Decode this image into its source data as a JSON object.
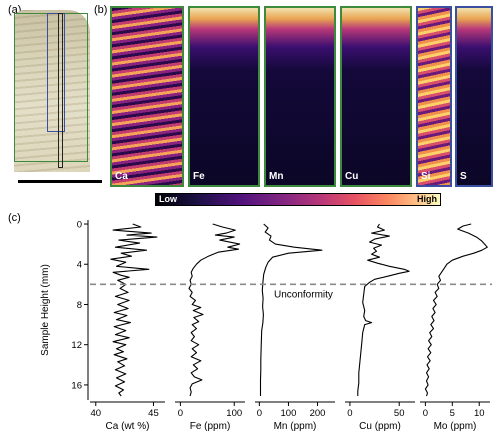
{
  "panels": {
    "a_label": "(a)",
    "b_label": "(b)",
    "c_label": "(c)"
  },
  "maps": [
    {
      "label": "Ca",
      "frame": "green",
      "pattern": "ca"
    },
    {
      "label": "Fe",
      "frame": "green",
      "pattern": "dark"
    },
    {
      "label": "Mn",
      "frame": "green",
      "pattern": "dark"
    },
    {
      "label": "Cu",
      "frame": "green",
      "pattern": "dark"
    },
    {
      "label": "Si",
      "frame": "blue",
      "pattern": "si"
    },
    {
      "label": "S",
      "frame": "blue",
      "pattern": "dark"
    }
  ],
  "colorbar": {
    "low": "Low",
    "high": "High"
  },
  "colors": {
    "frame_green": "#3d8a3d",
    "frame_blue": "#3a4fa0",
    "line": "#000000",
    "unconformity": "#8a8a8a"
  },
  "chart_data": {
    "type": "line",
    "ylabel": "Sample Height (mm)",
    "ylim": [
      17.5,
      -0.4
    ],
    "yticks": [
      0,
      4,
      8,
      12,
      16
    ],
    "unconformity": {
      "height": 6.0,
      "label": "Unconformity"
    },
    "series": [
      {
        "name": "Ca",
        "xlabel": "Ca (wt %)",
        "xlim": [
          39.5,
          46
        ],
        "xticks": [
          40,
          45
        ],
        "points": [
          [
            43.2,
            0
          ],
          [
            43.9,
            0.3
          ],
          [
            41.5,
            0.6
          ],
          [
            44.8,
            0.9
          ],
          [
            42.7,
            1.1
          ],
          [
            45.3,
            1.3
          ],
          [
            42.0,
            1.6
          ],
          [
            43.8,
            1.9
          ],
          [
            41.7,
            2.3
          ],
          [
            44.4,
            2.6
          ],
          [
            42.2,
            2.9
          ],
          [
            43.1,
            3.2
          ],
          [
            41.3,
            3.5
          ],
          [
            42.6,
            3.8
          ],
          [
            41.8,
            4.2
          ],
          [
            44.6,
            4.5
          ],
          [
            41.5,
            4.8
          ],
          [
            42.2,
            5.1
          ],
          [
            42.9,
            5.3
          ],
          [
            41.9,
            5.6
          ],
          [
            42.6,
            6.0
          ],
          [
            42.1,
            6.4
          ],
          [
            42.8,
            6.8
          ],
          [
            41.7,
            7.2
          ],
          [
            42.9,
            7.6
          ],
          [
            41.9,
            8.0
          ],
          [
            42.8,
            8.4
          ],
          [
            41.6,
            8.8
          ],
          [
            42.7,
            9.1
          ],
          [
            41.8,
            9.5
          ],
          [
            43.0,
            9.8
          ],
          [
            41.6,
            10.2
          ],
          [
            42.6,
            10.6
          ],
          [
            41.7,
            11.0
          ],
          [
            42.9,
            11.3
          ],
          [
            41.5,
            11.7
          ],
          [
            42.6,
            12.0
          ],
          [
            41.8,
            12.4
          ],
          [
            42.4,
            12.7
          ],
          [
            41.6,
            13.0
          ],
          [
            42.7,
            13.4
          ],
          [
            41.9,
            13.7
          ],
          [
            42.5,
            14.1
          ],
          [
            41.7,
            14.5
          ],
          [
            42.6,
            14.9
          ],
          [
            41.8,
            15.3
          ],
          [
            42.5,
            15.7
          ],
          [
            41.7,
            16.1
          ],
          [
            42.4,
            16.5
          ],
          [
            42.0,
            16.8
          ],
          [
            42.2,
            17.1
          ]
        ]
      },
      {
        "name": "Fe",
        "xlabel": "Fe (ppm)",
        "xlim": [
          -10,
          120
        ],
        "xticks": [
          0,
          100
        ],
        "points": [
          [
            60,
            0
          ],
          [
            78,
            0.3
          ],
          [
            102,
            0.6
          ],
          [
            85,
            0.9
          ],
          [
            65,
            1.1
          ],
          [
            100,
            1.3
          ],
          [
            73,
            1.6
          ],
          [
            110,
            2.0
          ],
          [
            88,
            2.3
          ],
          [
            108,
            2.5
          ],
          [
            70,
            2.8
          ],
          [
            52,
            3.2
          ],
          [
            38,
            3.6
          ],
          [
            30,
            4.0
          ],
          [
            24,
            4.4
          ],
          [
            20,
            4.8
          ],
          [
            22,
            5.2
          ],
          [
            18,
            5.6
          ],
          [
            20,
            6.0
          ],
          [
            16,
            6.4
          ],
          [
            22,
            6.8
          ],
          [
            18,
            7.2
          ],
          [
            28,
            7.6
          ],
          [
            22,
            8.0
          ],
          [
            38,
            8.3
          ],
          [
            24,
            8.6
          ],
          [
            42,
            9.0
          ],
          [
            25,
            9.3
          ],
          [
            34,
            9.7
          ],
          [
            22,
            10.0
          ],
          [
            30,
            10.4
          ],
          [
            20,
            10.8
          ],
          [
            26,
            11.2
          ],
          [
            20,
            11.6
          ],
          [
            34,
            12.0
          ],
          [
            22,
            12.4
          ],
          [
            30,
            12.8
          ],
          [
            20,
            13.2
          ],
          [
            38,
            13.6
          ],
          [
            24,
            14.0
          ],
          [
            32,
            14.4
          ],
          [
            20,
            14.8
          ],
          [
            26,
            15.2
          ],
          [
            40,
            15.5
          ],
          [
            22,
            15.9
          ],
          [
            18,
            16.3
          ],
          [
            20,
            16.7
          ],
          [
            18,
            17.1
          ]
        ]
      },
      {
        "name": "Mn",
        "xlabel": "Mn (ppm)",
        "xlim": [
          -15,
          260
        ],
        "xticks": [
          0,
          100,
          200
        ],
        "points": [
          [
            15,
            0
          ],
          [
            30,
            0.4
          ],
          [
            20,
            0.8
          ],
          [
            40,
            1.2
          ],
          [
            35,
            1.6
          ],
          [
            55,
            2.0
          ],
          [
            120,
            2.3
          ],
          [
            215,
            2.6
          ],
          [
            100,
            2.9
          ],
          [
            45,
            3.3
          ],
          [
            30,
            3.8
          ],
          [
            22,
            4.3
          ],
          [
            15,
            5.0
          ],
          [
            12,
            5.8
          ],
          [
            10,
            6.6
          ],
          [
            13,
            7.4
          ],
          [
            11,
            8.2
          ],
          [
            14,
            9.0
          ],
          [
            12,
            9.8
          ],
          [
            8,
            10.6
          ],
          [
            7,
            11.5
          ],
          [
            6,
            12.5
          ],
          [
            5,
            13.5
          ],
          [
            5,
            14.5
          ],
          [
            4,
            15.5
          ],
          [
            4,
            16.5
          ],
          [
            4,
            17.1
          ]
        ]
      },
      {
        "name": "Cu",
        "xlabel": "Cu (ppm)",
        "xlim": [
          -5,
          66
        ],
        "xticks": [
          0,
          50
        ],
        "points": [
          [
            30,
            0
          ],
          [
            28,
            0.3
          ],
          [
            35,
            0.6
          ],
          [
            22,
            0.9
          ],
          [
            40,
            1.2
          ],
          [
            25,
            1.5
          ],
          [
            20,
            1.8
          ],
          [
            32,
            2.1
          ],
          [
            24,
            2.4
          ],
          [
            27,
            2.7
          ],
          [
            22,
            3.0
          ],
          [
            30,
            3.3
          ],
          [
            18,
            3.6
          ],
          [
            28,
            3.9
          ],
          [
            40,
            4.2
          ],
          [
            55,
            4.5
          ],
          [
            60,
            4.7
          ],
          [
            50,
            4.9
          ],
          [
            38,
            5.2
          ],
          [
            25,
            5.5
          ],
          [
            20,
            5.8
          ],
          [
            15,
            6.2
          ],
          [
            14,
            7.0
          ],
          [
            13,
            7.8
          ],
          [
            15,
            8.6
          ],
          [
            14,
            9.2
          ],
          [
            16,
            9.6
          ],
          [
            22,
            9.8
          ],
          [
            15,
            10.0
          ],
          [
            13,
            10.8
          ],
          [
            12,
            11.8
          ],
          [
            11,
            12.8
          ],
          [
            10,
            13.8
          ],
          [
            9,
            14.8
          ],
          [
            9,
            15.8
          ],
          [
            8,
            16.6
          ],
          [
            8,
            17.1
          ]
        ]
      },
      {
        "name": "Mo",
        "xlabel": "Mo (ppm)",
        "xlim": [
          -1,
          12
        ],
        "xticks": [
          0,
          5,
          10
        ],
        "points": [
          [
            8.5,
            0
          ],
          [
            7.0,
            0.2
          ],
          [
            6.0,
            0.5
          ],
          [
            8.0,
            0.9
          ],
          [
            9.5,
            1.3
          ],
          [
            10.5,
            1.7
          ],
          [
            11.0,
            2.0
          ],
          [
            11.5,
            2.3
          ],
          [
            10.5,
            2.6
          ],
          [
            9.0,
            2.9
          ],
          [
            7.0,
            3.2
          ],
          [
            5.0,
            3.6
          ],
          [
            4.0,
            4.0
          ],
          [
            3.5,
            4.4
          ],
          [
            3.0,
            4.8
          ],
          [
            2.5,
            5.2
          ],
          [
            2.8,
            5.6
          ],
          [
            2.2,
            6.0
          ],
          [
            2.5,
            6.4
          ],
          [
            1.8,
            6.8
          ],
          [
            2.2,
            7.2
          ],
          [
            1.5,
            7.6
          ],
          [
            2.0,
            8.0
          ],
          [
            1.4,
            8.4
          ],
          [
            1.8,
            8.8
          ],
          [
            1.2,
            9.2
          ],
          [
            1.6,
            9.6
          ],
          [
            1.0,
            10.0
          ],
          [
            1.5,
            10.4
          ],
          [
            0.8,
            10.8
          ],
          [
            1.2,
            11.2
          ],
          [
            0.6,
            11.6
          ],
          [
            1.1,
            12.0
          ],
          [
            0.5,
            12.4
          ],
          [
            1.0,
            12.8
          ],
          [
            0.4,
            13.2
          ],
          [
            0.9,
            13.6
          ],
          [
            0.3,
            14.0
          ],
          [
            0.7,
            14.4
          ],
          [
            0.2,
            14.8
          ],
          [
            0.6,
            15.2
          ],
          [
            0.2,
            15.6
          ],
          [
            0.5,
            16.0
          ],
          [
            0.0,
            16.4
          ],
          [
            0.4,
            16.8
          ],
          [
            0.2,
            17.1
          ]
        ]
      }
    ]
  }
}
